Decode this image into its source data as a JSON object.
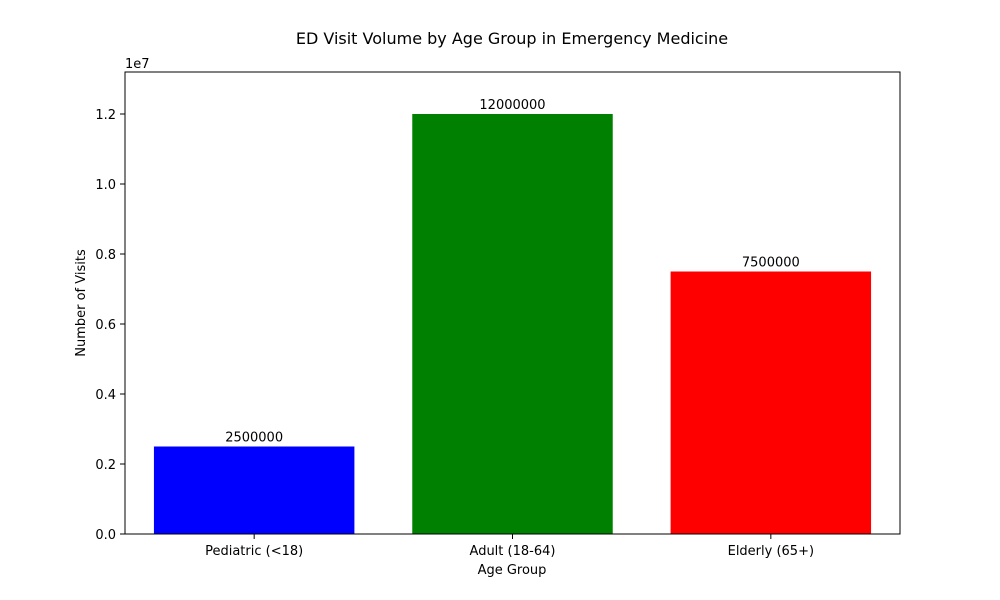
{
  "chart_data": {
    "type": "bar",
    "title": "ED Visit Volume by Age Group in Emergency Medicine",
    "xlabel": "Age Group",
    "ylabel": "Number of Visits",
    "offset_label": "1e7",
    "ylim": [
      0,
      13200000
    ],
    "yticks": [
      0,
      2000000,
      4000000,
      6000000,
      8000000,
      10000000,
      12000000
    ],
    "ytick_labels": [
      "0.0",
      "0.2",
      "0.4",
      "0.6",
      "0.8",
      "1.0",
      "1.2"
    ],
    "grid": false,
    "categories": [
      "Pediatric (<18)",
      "Adult (18-64)",
      "Elderly (65+)"
    ],
    "values": [
      2500000,
      12000000,
      7500000
    ],
    "value_labels": [
      "2500000",
      "12000000",
      "7500000"
    ],
    "colors": [
      "#0000ff",
      "#008000",
      "#ff0000"
    ]
  }
}
